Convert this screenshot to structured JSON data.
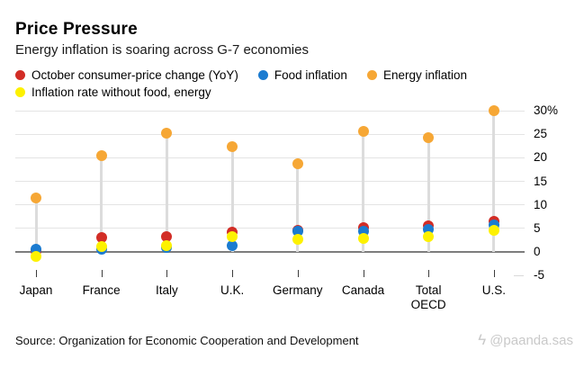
{
  "header": {
    "title": "Price Pressure",
    "subtitle": "Energy inflation is soaring across G-7 economies"
  },
  "legend": [
    {
      "label": "October consumer-price change (YoY)",
      "color": "#d22d26",
      "row": 1
    },
    {
      "label": "Food inflation",
      "color": "#1b7bd0",
      "row": 1
    },
    {
      "label": "Energy inflation",
      "color": "#f6a735",
      "row": 1
    },
    {
      "label": "Inflation rate without food, energy",
      "color": "#fdf100",
      "row": 2
    }
  ],
  "chart_data": {
    "type": "scatter",
    "title": "Price Pressure",
    "subtitle": "Energy inflation is soaring across G-7 economies",
    "categories": [
      "Japan",
      "France",
      "Italy",
      "U.K.",
      "Germany",
      "Canada",
      "Total OECD",
      "U.S."
    ],
    "categories_display": [
      "Japan",
      "France",
      "Italy",
      "U.K.",
      "Germany",
      "Canada",
      "Total\nOECD",
      "U.S."
    ],
    "series": [
      {
        "name": "October consumer-price change (YoY)",
        "color": "#d22d26",
        "values": [
          0.1,
          3.0,
          3.3,
          4.2,
          4.6,
          5.2,
          5.6,
          6.6
        ]
      },
      {
        "name": "Food inflation",
        "color": "#1b7bd0",
        "values": [
          0.6,
          0.6,
          1.0,
          1.3,
          4.4,
          4.4,
          4.8,
          5.7
        ]
      },
      {
        "name": "Energy inflation",
        "color": "#f6a735",
        "values": [
          11.4,
          20.5,
          25.2,
          22.4,
          18.8,
          25.6,
          24.3,
          30.0
        ]
      },
      {
        "name": "Inflation rate without food, energy",
        "color": "#fdf100",
        "values": [
          -1.0,
          1.2,
          1.3,
          3.3,
          2.7,
          2.9,
          3.2,
          4.6
        ]
      }
    ],
    "xlabel": "",
    "ylabel": "",
    "ylim": [
      -5,
      30
    ],
    "yticks": [
      "30%",
      "25",
      "20",
      "15",
      "10",
      "5",
      "0",
      "-5"
    ],
    "ytick_values": [
      30,
      25,
      20,
      15,
      10,
      5,
      0,
      -5
    ],
    "gridline_values": [
      0,
      5,
      10,
      15,
      20,
      25,
      30
    ],
    "grid": true,
    "legend_position": "top",
    "stem_color": "#dcdcdc",
    "zero_line_color": "#7d7d7d",
    "gridline_color": "#e4e4e4"
  },
  "footer": {
    "source": "Source: Organization for Economic Cooperation and Development",
    "watermark": "@paanda.sas",
    "watermark_icon": "ϟ"
  }
}
